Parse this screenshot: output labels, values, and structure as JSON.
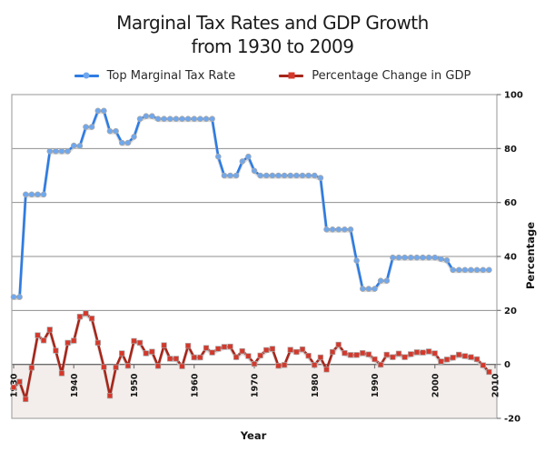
{
  "title": {
    "line1": "Marginal Tax Rates and GDP Growth",
    "line2": "from 1930 to 2009"
  },
  "legend": {
    "tax_label": "Top Marginal Tax Rate",
    "gdp_label": "Percentage Change in GDP"
  },
  "axes": {
    "x_label": "Year",
    "y_label": "Percentage",
    "x_ticks": [
      1930,
      1940,
      1950,
      1960,
      1970,
      1980,
      1990,
      2000,
      2010
    ],
    "y_ticks": [
      100,
      80,
      60,
      40,
      20,
      0,
      -20
    ]
  },
  "colors": {
    "tax_line": "#2E7CE3",
    "tax_marker": "#6FA8EF",
    "gdp_line": "#A6261B",
    "gdp_marker": "#D5382B",
    "marker_edge": "#A9A9A9",
    "line_shadow": "#CFCFCF",
    "below_zero_fill": "#F3EEEB",
    "gridline": "#8F8F8F",
    "zero_line": "#6C6C6C",
    "plot_border": "#A8A8A8",
    "tick_color": "#777777"
  },
  "chart_data": {
    "type": "line",
    "title": "Marginal Tax Rates and GDP Growth from 1930 to 2009",
    "xlabel": "Year",
    "ylabel": "Percentage",
    "xlim": [
      1930,
      2010
    ],
    "ylim": [
      -20,
      100
    ],
    "grid": "horizontal gridlines every 20 units; area below 0 shaded",
    "legend_position": "top",
    "x": [
      1930,
      1931,
      1932,
      1933,
      1934,
      1935,
      1936,
      1937,
      1938,
      1939,
      1940,
      1941,
      1942,
      1943,
      1944,
      1945,
      1946,
      1947,
      1948,
      1949,
      1950,
      1951,
      1952,
      1953,
      1954,
      1955,
      1956,
      1957,
      1958,
      1959,
      1960,
      1961,
      1962,
      1963,
      1964,
      1965,
      1966,
      1967,
      1968,
      1969,
      1970,
      1971,
      1972,
      1973,
      1974,
      1975,
      1976,
      1977,
      1978,
      1979,
      1980,
      1981,
      1982,
      1983,
      1984,
      1985,
      1986,
      1987,
      1988,
      1989,
      1990,
      1991,
      1992,
      1993,
      1994,
      1995,
      1996,
      1997,
      1998,
      1999,
      2000,
      2001,
      2002,
      2003,
      2004,
      2005,
      2006,
      2007,
      2008,
      2009
    ],
    "series": [
      {
        "name": "Top Marginal Tax Rate",
        "marker": "circle",
        "values": [
          25,
          25,
          63,
          63,
          63,
          63,
          79,
          79,
          79,
          79,
          81.1,
          81,
          88,
          88,
          94,
          94,
          86.45,
          86.45,
          82.13,
          82.13,
          84.36,
          91,
          92,
          92,
          91,
          91,
          91,
          91,
          91,
          91,
          91,
          91,
          91,
          91,
          77,
          70,
          70,
          70,
          75.25,
          77,
          71.75,
          70,
          70,
          70,
          70,
          70,
          70,
          70,
          70,
          70,
          70,
          69.13,
          50,
          50,
          50,
          50,
          50,
          38.5,
          28,
          28,
          28,
          31,
          31,
          39.6,
          39.6,
          39.6,
          39.6,
          39.6,
          39.6,
          39.6,
          39.6,
          39.1,
          38.6,
          35,
          35,
          35,
          35,
          35,
          35,
          35
        ]
      },
      {
        "name": "Percentage Change in GDP",
        "marker": "square",
        "values": [
          -8.5,
          -6.4,
          -12.9,
          -1.2,
          10.8,
          8.9,
          12.9,
          5.1,
          -3.3,
          8.0,
          8.8,
          17.7,
          18.9,
          17.0,
          8.0,
          -1.0,
          -11.6,
          -1.1,
          4.1,
          -0.5,
          8.7,
          8.0,
          4.1,
          4.7,
          -0.6,
          7.1,
          2.1,
          2.1,
          -0.7,
          6.9,
          2.6,
          2.6,
          6.1,
          4.4,
          5.8,
          6.5,
          6.6,
          2.7,
          4.9,
          3.1,
          0.2,
          3.3,
          5.3,
          5.8,
          -0.5,
          -0.2,
          5.4,
          4.6,
          5.6,
          3.2,
          -0.2,
          2.6,
          -1.9,
          4.6,
          7.3,
          4.2,
          3.5,
          3.5,
          4.2,
          3.7,
          1.9,
          -0.1,
          3.6,
          2.7,
          4.0,
          2.7,
          3.8,
          4.5,
          4.4,
          4.8,
          4.1,
          1.1,
          1.8,
          2.5,
          3.6,
          3.1,
          2.7,
          1.9,
          -0.3,
          -2.8
        ]
      }
    ]
  }
}
